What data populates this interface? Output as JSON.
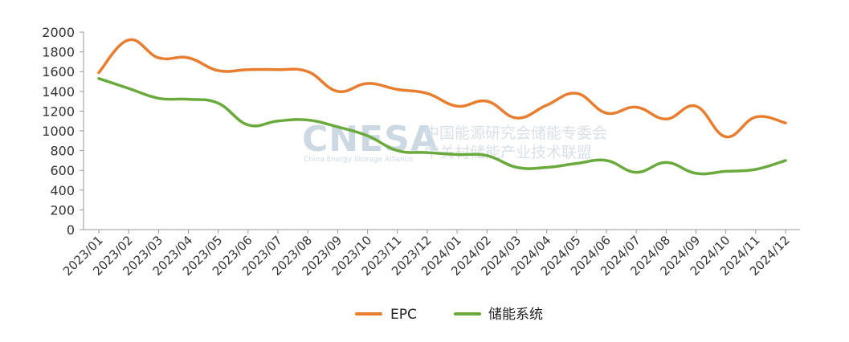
{
  "chart_data": {
    "type": "line",
    "title": "",
    "xlabel": "",
    "ylabel": "",
    "categories": [
      "2023/01",
      "2023/02",
      "2023/03",
      "2023/04",
      "2023/05",
      "2023/06",
      "2023/07",
      "2023/08",
      "2023/09",
      "2023/10",
      "2023/11",
      "2023/12",
      "2024/01",
      "2024/02",
      "2024/03",
      "2024/04",
      "2024/05",
      "2024/06",
      "2024/07",
      "2024/08",
      "2024/09",
      "2024/10",
      "2024/11",
      "2024/12"
    ],
    "ylim": [
      0,
      2000
    ],
    "yticks": [
      0,
      200,
      400,
      600,
      800,
      1000,
      1200,
      1400,
      1600,
      1800,
      2000
    ],
    "grid": false,
    "legend_position": "bottom-center",
    "series": [
      {
        "name": "EPC",
        "color": "#e87d2f",
        "values": [
          1590,
          1920,
          1740,
          1740,
          1610,
          1620,
          1620,
          1600,
          1400,
          1480,
          1420,
          1380,
          1250,
          1300,
          1130,
          1260,
          1380,
          1180,
          1240,
          1120,
          1250,
          940,
          1140,
          1080
        ]
      },
      {
        "name": "储能系统",
        "color": "#6aaa3c",
        "values": [
          1530,
          1430,
          1330,
          1320,
          1280,
          1060,
          1100,
          1110,
          1040,
          950,
          800,
          780,
          760,
          750,
          630,
          630,
          670,
          700,
          580,
          680,
          570,
          590,
          610,
          700
        ]
      }
    ]
  },
  "watermark": {
    "logo": "CNESA",
    "subtitle": "China Energy Storage Alliance",
    "line1": "中国能源研究会储能专委会",
    "line2": "中关村储能产业技术联盟"
  }
}
